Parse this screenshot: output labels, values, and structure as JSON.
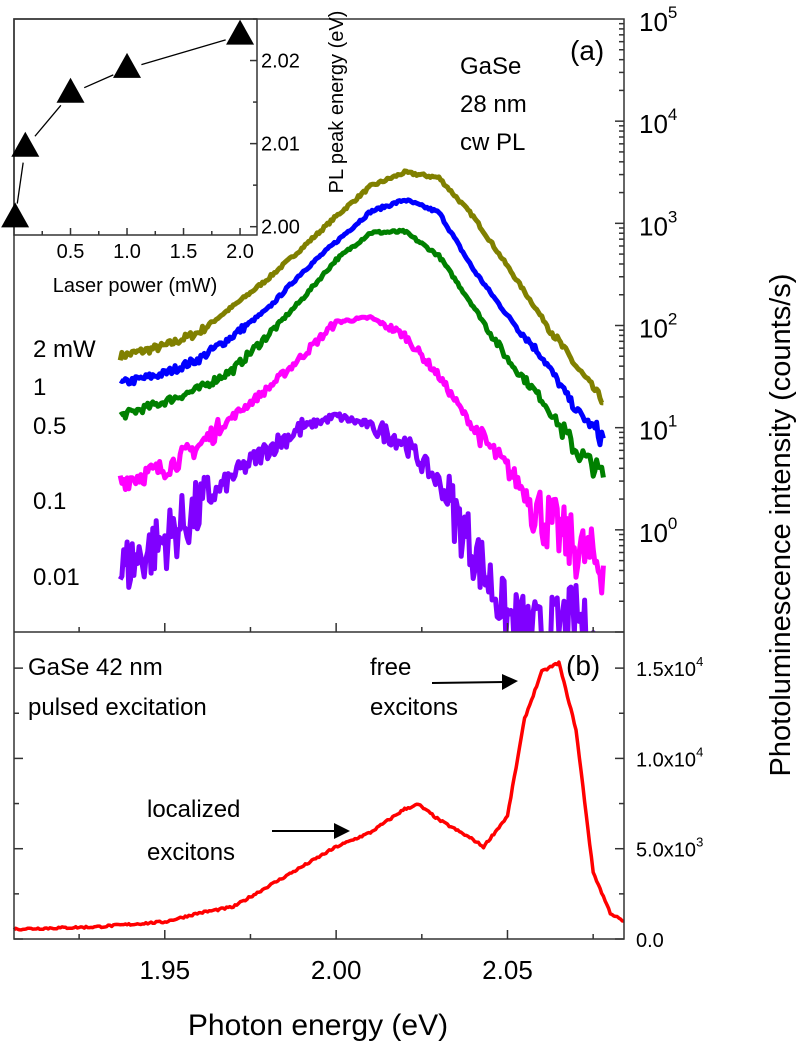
{
  "chart_data": [
    {
      "panel": "(a)",
      "type": "line",
      "yscale": "log",
      "xlim": [
        1.906,
        2.084
      ],
      "ylim": [
        0.1,
        100000
      ],
      "ylabel": "Photoluminescence intensity (counts/s)",
      "y_tick_exponents": [
        0,
        1,
        2,
        3,
        4,
        5
      ],
      "y_tick_base": "10",
      "annotations": [
        "GaSe",
        "28 nm",
        "cw PL"
      ],
      "x": [
        1.937,
        1.95,
        1.96,
        1.97,
        1.98,
        1.99,
        2.0,
        2.01,
        2.02,
        2.03,
        2.04,
        2.05,
        2.06,
        2.07,
        2.078
      ],
      "series": [
        {
          "name": "2 mW",
          "color": "#808000",
          "values": [
            50,
            63,
            86,
            155,
            285,
            570,
            1170,
            2300,
            3150,
            2800,
            1170,
            380,
            120,
            40,
            18
          ]
        },
        {
          "name": "1",
          "color": "#0000ff",
          "values": [
            27,
            34,
            47,
            80,
            145,
            330,
            660,
            1300,
            1700,
            1280,
            355,
            125,
            50,
            15,
            7.8
          ]
        },
        {
          "name": "0.5",
          "color": "#008000",
          "values": [
            13,
            18,
            24,
            37,
            80,
            180,
            440,
            810,
            830,
            480,
            155,
            47,
            19,
            6,
            3.4
          ]
        },
        {
          "name": "0.1",
          "color": "#ff00ff",
          "values": [
            3,
            4,
            6.7,
            13,
            24,
            50,
            108,
            120,
            80,
            32,
            10,
            4,
            1.4,
            0.65,
            0.45
          ]
        },
        {
          "name": "0.01",
          "color": "#8000ff",
          "values": [
            0.4,
            0.8,
            1.6,
            3.4,
            6.2,
            10,
            13,
            10.5,
            7.2,
            2.9,
            0.65,
            0.14,
            0.1,
            0.15,
            0.05
          ]
        }
      ]
    },
    {
      "panel": "inset",
      "type": "line",
      "marker": "triangle",
      "xlabel": "Laser power (mW)",
      "ylabel": "PL peak energy (eV)",
      "xlim": [
        0,
        2.15
      ],
      "ylim": [
        1.999,
        2.025
      ],
      "x_ticks": [
        "0.5",
        "1.0",
        "1.5",
        "2.0"
      ],
      "y_ticks": [
        "2.00",
        "2.01",
        "2.02"
      ],
      "x": [
        0.01,
        0.1,
        0.5,
        1.0,
        2.0
      ],
      "y": [
        2.001,
        2.0095,
        2.016,
        2.019,
        2.023
      ]
    },
    {
      "panel": "(b)",
      "type": "line",
      "color": "#ff0000",
      "xlabel": "Photon energy (eV)",
      "xlim": [
        1.906,
        2.084
      ],
      "ylim": [
        0,
        17000
      ],
      "x_ticks": [
        "1.95",
        "2.00",
        "2.05"
      ],
      "y_ticks": [
        {
          "mant": "0.0",
          "exp": ""
        },
        {
          "mant": "5.0x10",
          "exp": "3"
        },
        {
          "mant": "1.0x10",
          "exp": "4"
        },
        {
          "mant": "1.5x10",
          "exp": "4"
        }
      ],
      "annotations": [
        "GaSe 42 nm",
        "pulsed excitation",
        "free",
        "excitons",
        "localized",
        "excitons"
      ],
      "x": [
        1.906,
        1.93,
        1.95,
        1.96,
        1.97,
        1.98,
        1.99,
        2.0,
        2.01,
        2.02,
        2.024,
        2.03,
        2.04,
        2.043,
        2.05,
        2.055,
        2.06,
        2.065,
        2.07,
        2.075,
        2.08,
        2.084
      ],
      "values": [
        550,
        670,
        950,
        1440,
        1780,
        2900,
        4000,
        5100,
        5900,
        7200,
        7450,
        6600,
        5500,
        5100,
        6800,
        12200,
        14800,
        15300,
        11600,
        3700,
        1440,
        950
      ]
    }
  ]
}
